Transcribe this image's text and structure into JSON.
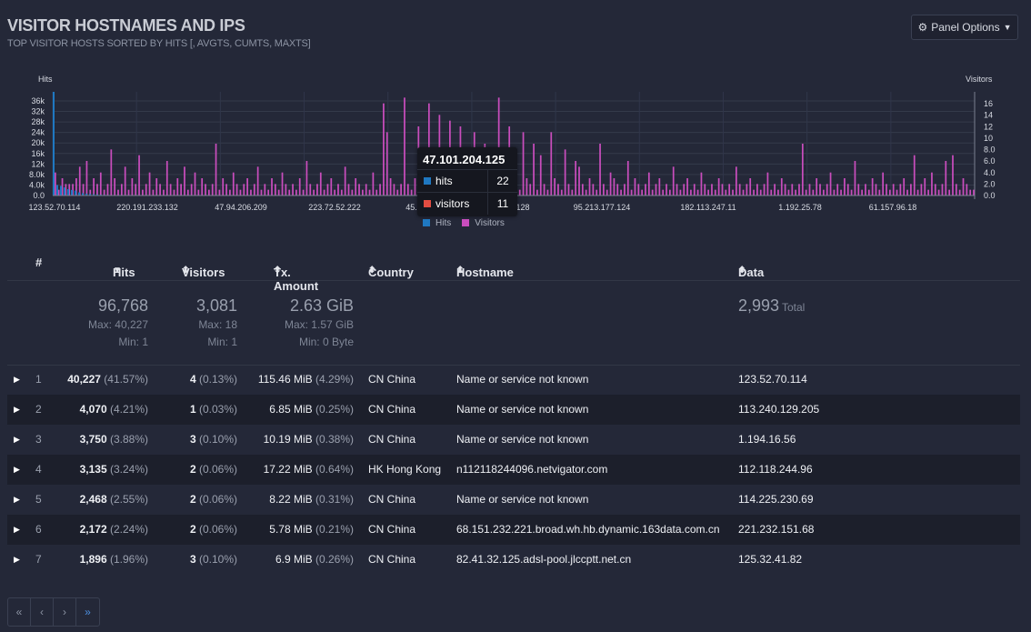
{
  "panel": {
    "title": "VISITOR HOSTNAMES AND IPS",
    "subtitle": "TOP VISITOR HOSTS SORTED BY HITS [, AVGTS, CUMTS, MAXTS]",
    "options_label": "Panel Options",
    "options_icon": "gear-icon"
  },
  "chart_data": {
    "type": "bar",
    "y_left_label": "Hits",
    "y_right_label": "Visitors",
    "y_left_ticks": [
      "36k",
      "32k",
      "28k",
      "24k",
      "20k",
      "16k",
      "12k",
      "8.0k",
      "4.0k",
      "0.0"
    ],
    "y_right_ticks": [
      "16",
      "14",
      "12",
      "10",
      "8.0",
      "6.0",
      "4.0",
      "2.0",
      "0.0"
    ],
    "x_tick_labels": [
      "123.52.70.114",
      "220.191.233.132",
      "47.94.206.209",
      "223.72.52.222",
      "45.5",
      "6.38.128",
      "95.213.177.124",
      "182.113.247.11",
      "1.192.25.78",
      "61.157.96.18"
    ],
    "ylim_left": [
      0,
      40227
    ],
    "ylim_right": [
      0,
      18
    ],
    "grid": true,
    "legend": "bottom-center",
    "colors": {
      "hits": "#1f78c1",
      "visitors": "#c94dbd"
    },
    "series": [
      {
        "name": "Hits",
        "values": [
          40227,
          4070,
          3750,
          3135,
          2468,
          2172,
          1896,
          1200,
          900,
          700,
          600,
          500,
          400,
          300,
          250,
          200
        ]
      },
      {
        "name": "Visitors",
        "values": [
          4,
          1,
          3,
          2,
          2,
          2,
          3,
          5,
          2,
          6,
          1,
          3,
          2,
          4,
          1,
          2,
          8,
          3,
          1,
          2,
          5,
          1,
          3,
          2,
          7,
          1,
          2,
          4,
          1,
          3,
          2,
          1,
          6,
          2,
          1,
          3,
          2,
          5,
          1,
          2,
          4,
          1,
          3,
          2,
          1,
          2,
          9,
          1,
          3,
          2,
          1,
          4,
          2,
          1,
          2,
          3,
          1,
          2,
          5,
          1,
          2,
          1,
          3,
          2,
          1,
          4,
          2,
          1,
          2,
          1,
          3,
          1,
          6,
          2,
          1,
          2,
          4,
          1,
          2,
          3,
          1,
          2,
          1,
          5,
          2,
          1,
          3,
          2,
          1,
          2,
          1,
          4,
          1,
          2,
          16,
          11,
          3,
          2,
          1,
          2,
          17,
          2,
          1,
          3,
          12,
          2,
          1,
          16,
          2,
          1,
          14,
          3,
          2,
          13,
          1,
          4,
          12,
          2,
          1,
          3,
          11,
          2,
          1,
          9,
          2,
          1,
          3,
          17,
          2,
          1,
          12,
          4,
          2,
          1,
          11,
          3,
          2,
          9,
          1,
          7,
          2,
          1,
          11,
          3,
          2,
          1,
          8,
          2,
          1,
          6,
          5,
          2,
          1,
          3,
          2,
          1,
          9,
          2,
          1,
          4,
          3,
          2,
          1,
          2,
          6,
          1,
          3,
          2,
          1,
          2,
          4,
          1,
          2,
          3,
          1,
          2,
          1,
          5,
          2,
          1,
          2,
          3,
          1,
          2,
          1,
          4,
          2,
          1,
          2,
          1,
          3,
          2,
          1,
          2,
          1,
          5,
          2,
          1,
          2,
          3,
          1,
          2,
          1,
          2,
          4,
          1,
          2,
          1,
          3,
          2,
          1,
          2,
          1,
          2,
          9,
          1,
          2,
          1,
          3,
          2,
          1,
          2,
          4,
          1,
          2,
          1,
          3,
          2,
          1,
          6,
          2,
          1,
          2,
          1,
          3,
          2,
          1,
          4,
          2,
          1,
          2,
          1,
          2,
          3,
          1,
          2,
          7,
          1,
          2,
          3,
          1,
          4,
          2,
          1,
          2,
          6,
          1,
          7,
          2,
          1,
          3,
          2,
          1,
          1
        ]
      }
    ],
    "tooltip": {
      "title": "47.101.204.125",
      "rows": [
        {
          "name": "hits",
          "value": "22",
          "color": "#1f78c1"
        },
        {
          "name": "visitors",
          "value": "11",
          "color": "#e24d42"
        }
      ]
    },
    "legend_items": [
      {
        "name": "Hits",
        "color": "#1f78c1"
      },
      {
        "name": "Visitors",
        "color": "#c94dbd"
      }
    ]
  },
  "table": {
    "headers": {
      "num": "#",
      "hits": "Hits",
      "visitors": "Visitors",
      "tx": "Tx. Amount",
      "country": "Country",
      "hostname": "Hostname",
      "data": "Data"
    },
    "totals": {
      "hits": "96,768",
      "hits_max": "Max: 40,227",
      "hits_min": "Min: 1",
      "visitors": "3,081",
      "visitors_max": "Max: 18",
      "visitors_min": "Min: 1",
      "tx": "2.63 GiB",
      "tx_max": "Max: 1.57 GiB",
      "tx_min": "Min: 0 Byte",
      "data": "2,993",
      "data_label": "Total"
    },
    "rows": [
      {
        "num": "1",
        "hits": "40,227",
        "hits_pct": "(41.57%)",
        "visitors": "4",
        "visitors_pct": "(0.13%)",
        "tx": "115.46 MiB",
        "tx_pct": "(4.29%)",
        "country": "CN China",
        "hostname": "Name or service not known",
        "data": "123.52.70.114"
      },
      {
        "num": "2",
        "hits": "4,070",
        "hits_pct": "(4.21%)",
        "visitors": "1",
        "visitors_pct": "(0.03%)",
        "tx": "6.85 MiB",
        "tx_pct": "(0.25%)",
        "country": "CN China",
        "hostname": "Name or service not known",
        "data": "113.240.129.205"
      },
      {
        "num": "3",
        "hits": "3,750",
        "hits_pct": "(3.88%)",
        "visitors": "3",
        "visitors_pct": "(0.10%)",
        "tx": "10.19 MiB",
        "tx_pct": "(0.38%)",
        "country": "CN China",
        "hostname": "Name or service not known",
        "data": "1.194.16.56"
      },
      {
        "num": "4",
        "hits": "3,135",
        "hits_pct": "(3.24%)",
        "visitors": "2",
        "visitors_pct": "(0.06%)",
        "tx": "17.22 MiB",
        "tx_pct": "(0.64%)",
        "country": "HK Hong Kong",
        "hostname": "n112118244096.netvigator.com",
        "data": "112.118.244.96"
      },
      {
        "num": "5",
        "hits": "2,468",
        "hits_pct": "(2.55%)",
        "visitors": "2",
        "visitors_pct": "(0.06%)",
        "tx": "8.22 MiB",
        "tx_pct": "(0.31%)",
        "country": "CN China",
        "hostname": "Name or service not known",
        "data": "114.225.230.69"
      },
      {
        "num": "6",
        "hits": "2,172",
        "hits_pct": "(2.24%)",
        "visitors": "2",
        "visitors_pct": "(0.06%)",
        "tx": "5.78 MiB",
        "tx_pct": "(0.21%)",
        "country": "CN China",
        "hostname": "68.151.232.221.broad.wh.hb.dynamic.163data.com.cn",
        "data": "221.232.151.68"
      },
      {
        "num": "7",
        "hits": "1,896",
        "hits_pct": "(1.96%)",
        "visitors": "3",
        "visitors_pct": "(0.10%)",
        "tx": "6.9 MiB",
        "tx_pct": "(0.26%)",
        "country": "CN China",
        "hostname": "82.41.32.125.adsl-pool.jlccptt.net.cn",
        "data": "125.32.41.82"
      }
    ]
  },
  "pager": {
    "first": "«",
    "prev": "‹",
    "next": "›",
    "last": "»"
  }
}
